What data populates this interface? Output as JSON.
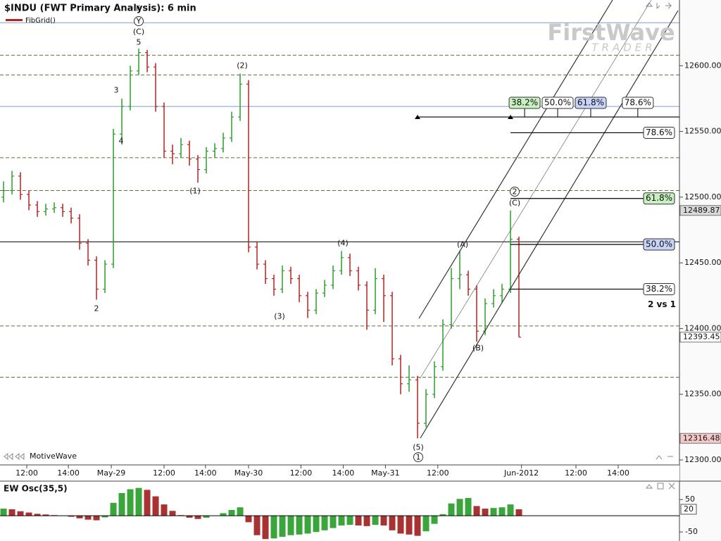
{
  "chart_data": {
    "type": "ohlc",
    "title": "$INDU (FWT Primary Analysis): 6 min",
    "indicator_label": "FibGrid()",
    "watermark": "MotiveWave",
    "logo": {
      "name": "FirstWave",
      "tagline": "TRADER"
    },
    "xlim": [
      -0.42,
      80
    ],
    "xticks": [
      {
        "value": 2.75,
        "label": "12:00"
      },
      {
        "value": 7.67,
        "label": "14:00"
      },
      {
        "value": 12.75,
        "label": "May-29"
      },
      {
        "value": 19.0,
        "label": "12:00"
      },
      {
        "value": 23.9,
        "label": "14:00"
      },
      {
        "value": 29.0,
        "label": "May-30"
      },
      {
        "value": 35.2,
        "label": "12:00"
      },
      {
        "value": 40.2,
        "label": "14:00"
      },
      {
        "value": 45.2,
        "label": "May-31"
      },
      {
        "value": 51.4,
        "label": "12:00"
      },
      {
        "value": 61.3,
        "label": "Jun-2012"
      },
      {
        "value": 67.75,
        "label": "12:00"
      },
      {
        "value": 72.75,
        "label": "14:00"
      }
    ],
    "ylim": [
      12296.25,
      12650
    ],
    "yticks": [
      {
        "value": 12300,
        "label": "12300.00"
      },
      {
        "value": 12350,
        "label": "12350.00"
      },
      {
        "value": 12400,
        "label": "12400.00"
      },
      {
        "value": 12450,
        "label": "12450.00"
      },
      {
        "value": 12500,
        "label": "12500.00"
      },
      {
        "value": 12550,
        "label": "12550.00"
      },
      {
        "value": 12600,
        "label": "12600.00"
      }
    ],
    "up_color": "#2e9b2e",
    "down_color": "#b52222",
    "open": [
      12500,
      12505,
      12516,
      12502,
      12494,
      12489,
      12491,
      12492,
      12489,
      12484,
      12465,
      12452,
      12430,
      12449,
      12548,
      12569,
      12596,
      12610,
      12599,
      12569,
      12535,
      12533,
      12540,
      12529,
      12521,
      12535,
      12537,
      12545,
      12561,
      12586,
      12462,
      12449,
      12438,
      12430,
      12444,
      12438,
      12425,
      12414,
      12427,
      12433,
      12444,
      12454,
      12444,
      12433,
      12414,
      12438,
      12425,
      12377,
      12358,
      12361,
      12328,
      12350,
      12371,
      12403,
      12438,
      12441,
      12430,
      12398,
      12419,
      12425,
      12430,
      12468
    ],
    "high": [
      12512,
      12520,
      12519,
      12505,
      12497,
      12495,
      12496,
      12495,
      12492,
      12487,
      12468,
      12455,
      12452,
      12552,
      12575,
      12600,
      12613,
      12612,
      12602,
      12572,
      12540,
      12545,
      12543,
      12532,
      12538,
      12541,
      12549,
      12565,
      12594,
      12589,
      12466,
      12452,
      12441,
      12448,
      12447,
      12441,
      12428,
      12430,
      12437,
      12448,
      12459,
      12457,
      12447,
      12436,
      12446,
      12441,
      12428,
      12380,
      12372,
      12364,
      12354,
      12375,
      12407,
      12446,
      12459,
      12444,
      12433,
      12423,
      12430,
      12434,
      12489.87,
      12470
    ],
    "low": [
      12496,
      12502,
      12498,
      12490,
      12485,
      12486,
      12488,
      12485,
      12480,
      12460,
      12448,
      12422,
      12427,
      12446,
      12540,
      12566,
      12593,
      12595,
      12565,
      12530,
      12525,
      12530,
      12524,
      12511,
      12518,
      12530,
      12534,
      12542,
      12558,
      12458,
      12445,
      12434,
      12425,
      12427,
      12434,
      12420,
      12408,
      12411,
      12424,
      12430,
      12441,
      12440,
      12429,
      12399,
      12411,
      12405,
      12372,
      12350,
      12352,
      12316.48,
      12325,
      12347,
      12368,
      12400,
      12430,
      12425,
      12390,
      12395,
      12416,
      12420,
      12427,
      12393.45
    ],
    "close": [
      12505,
      12516,
      12502,
      12494,
      12489,
      12491,
      12492,
      12489,
      12484,
      12465,
      12452,
      12430,
      12449,
      12548,
      12569,
      12596,
      12610,
      12599,
      12569,
      12535,
      12533,
      12540,
      12529,
      12521,
      12535,
      12537,
      12545,
      12561,
      12586,
      12462,
      12449,
      12438,
      12430,
      12444,
      12438,
      12425,
      12414,
      12427,
      12433,
      12444,
      12454,
      12444,
      12433,
      12414,
      12438,
      12425,
      12377,
      12358,
      12361,
      12328,
      12350,
      12371,
      12403,
      12438,
      12441,
      12430,
      12398,
      12419,
      12425,
      12430,
      12468,
      12393.45
    ],
    "guide_lines": [
      {
        "value": 12632.7,
        "style": "solid",
        "color": "#7a9fd6"
      },
      {
        "value": 12569,
        "style": "solid",
        "color": "#7a9fd6"
      },
      {
        "value": 12608,
        "style": "dashed",
        "color": "#6b6b3a"
      },
      {
        "value": 12593,
        "style": "dashed",
        "color": "#6b6b3a"
      },
      {
        "value": 12530,
        "style": "dashed",
        "color": "#6b6b3a"
      },
      {
        "value": 12505,
        "style": "dashed",
        "color": "#6b6b3a"
      },
      {
        "value": 12402,
        "style": "dashed",
        "color": "#6b6b3a"
      },
      {
        "value": 12363,
        "style": "dashed",
        "color": "#6b6b3a"
      },
      {
        "value": 12466,
        "style": "solid",
        "color": "#000000"
      }
    ],
    "annotations": [
      "ii",
      "Y",
      "(C)",
      "5",
      "3",
      "4",
      "2",
      "(1)",
      "(2)",
      "(3)",
      "(4)",
      "(5)",
      "1",
      "(A)",
      "(B)",
      "(C)",
      "2",
      "2 vs 1"
    ],
    "fib_levels": {
      "ratios": [
        78.6,
        61.8,
        50,
        38.2
      ],
      "labels": [
        "78.6%",
        "61.8%",
        "50.0%",
        "38.2%"
      ],
      "prices": [
        12549,
        12499,
        12464,
        12430
      ],
      "colors": [
        "#ffffff",
        "#c8f0c0",
        "#c8d4f8",
        "#ffffff"
      ]
    },
    "fib_time": {
      "price": 12561,
      "ratios": [
        38.2,
        50,
        61.8,
        78.6
      ],
      "labels": [
        "38.2%",
        "50.0%",
        "61.8%",
        "78.6%"
      ],
      "colors": [
        "#c8f0c0",
        "#ffffff",
        "#c8d4f8",
        "#ffffff"
      ]
    },
    "oscillator": {
      "title": "EW Osc(35,5)",
      "ylim": [
        -78,
        107
      ],
      "yticks": [
        50,
        -50
      ],
      "up_color": "#3aa53a",
      "down_color": "#a83232",
      "values": [
        22,
        20,
        14,
        10,
        6,
        4,
        2,
        0,
        -3,
        -8,
        -12,
        -14,
        -5,
        40,
        70,
        82,
        86,
        80,
        60,
        35,
        15,
        2,
        -6,
        -10,
        -6,
        0,
        8,
        18,
        26,
        -20,
        -60,
        -72,
        -70,
        -65,
        -60,
        -58,
        -55,
        -50,
        -45,
        -38,
        -30,
        -28,
        -30,
        -32,
        -28,
        -30,
        -45,
        -55,
        -58,
        -62,
        -48,
        -25,
        5,
        38,
        52,
        55,
        30,
        22,
        24,
        26,
        35,
        20
      ]
    }
  }
}
